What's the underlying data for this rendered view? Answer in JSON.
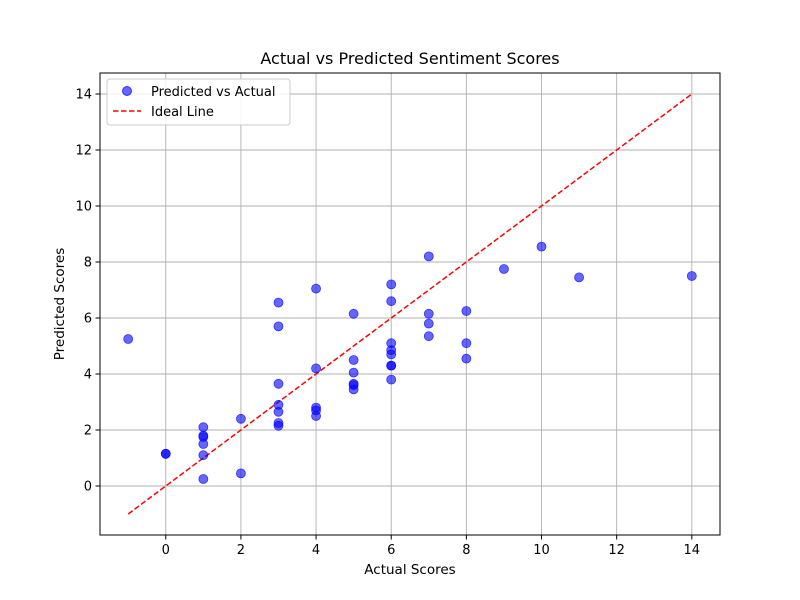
{
  "chart_data": {
    "type": "scatter",
    "title": "Actual vs Predicted Sentiment Scores",
    "xlabel": "Actual Scores",
    "ylabel": "Predicted Scores",
    "xlim": [
      -1.75,
      14.75
    ],
    "ylim": [
      -1.75,
      14.75
    ],
    "xticks": [
      0,
      2,
      4,
      6,
      8,
      10,
      12,
      14
    ],
    "yticks": [
      0,
      2,
      4,
      6,
      8,
      10,
      12,
      14
    ],
    "grid": true,
    "legend_position": "top-left",
    "series": [
      {
        "name": "Predicted vs Actual",
        "kind": "scatter",
        "color": "#0000ff",
        "points": [
          [
            -1,
            5.25
          ],
          [
            0,
            1.15
          ],
          [
            0,
            1.15
          ],
          [
            1,
            2.1
          ],
          [
            1,
            1.8
          ],
          [
            1,
            1.75
          ],
          [
            1,
            1.5
          ],
          [
            1,
            1.1
          ],
          [
            1,
            0.25
          ],
          [
            2,
            2.4
          ],
          [
            2,
            0.45
          ],
          [
            3,
            6.55
          ],
          [
            3,
            5.7
          ],
          [
            3,
            3.65
          ],
          [
            3,
            2.9
          ],
          [
            3,
            2.65
          ],
          [
            3,
            2.25
          ],
          [
            3,
            2.15
          ],
          [
            4,
            7.05
          ],
          [
            4,
            4.2
          ],
          [
            4,
            2.8
          ],
          [
            4,
            2.7
          ],
          [
            4,
            2.5
          ],
          [
            5,
            6.15
          ],
          [
            5,
            4.5
          ],
          [
            5,
            4.05
          ],
          [
            5,
            3.65
          ],
          [
            5,
            3.6
          ],
          [
            5,
            3.45
          ],
          [
            6,
            7.2
          ],
          [
            6,
            6.6
          ],
          [
            6,
            5.1
          ],
          [
            6,
            4.85
          ],
          [
            6,
            4.7
          ],
          [
            6,
            4.3
          ],
          [
            6,
            4.3
          ],
          [
            6,
            3.8
          ],
          [
            7,
            8.2
          ],
          [
            7,
            6.15
          ],
          [
            7,
            5.8
          ],
          [
            7,
            5.35
          ],
          [
            8,
            6.25
          ],
          [
            8,
            5.1
          ],
          [
            8,
            4.55
          ],
          [
            9,
            7.75
          ],
          [
            10,
            8.55
          ],
          [
            11,
            7.45
          ],
          [
            14,
            7.5
          ]
        ]
      },
      {
        "name": "Ideal Line",
        "kind": "line",
        "style": "dashed",
        "color": "#ff0000",
        "points": [
          [
            -1,
            -1
          ],
          [
            14,
            14
          ]
        ]
      }
    ]
  }
}
